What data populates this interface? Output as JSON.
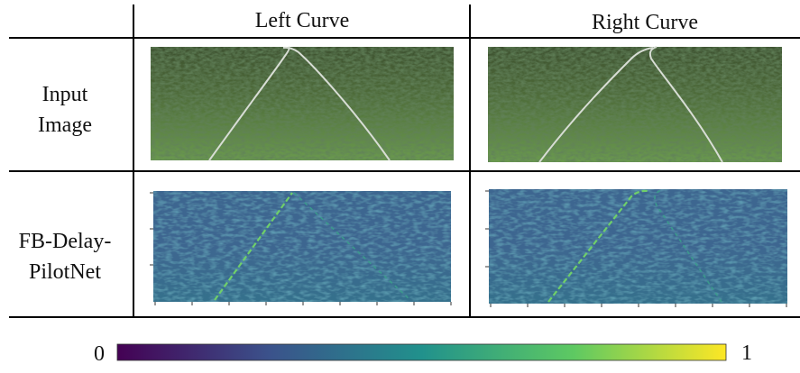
{
  "columns": [
    "Left Curve",
    "Right Curve"
  ],
  "rows": [
    {
      "label_lines": [
        "Input",
        "Image"
      ]
    },
    {
      "label_lines": [
        "FB-Delay-",
        "PilotNet"
      ]
    }
  ],
  "colorbar": {
    "min": 0,
    "max": 1
  }
}
